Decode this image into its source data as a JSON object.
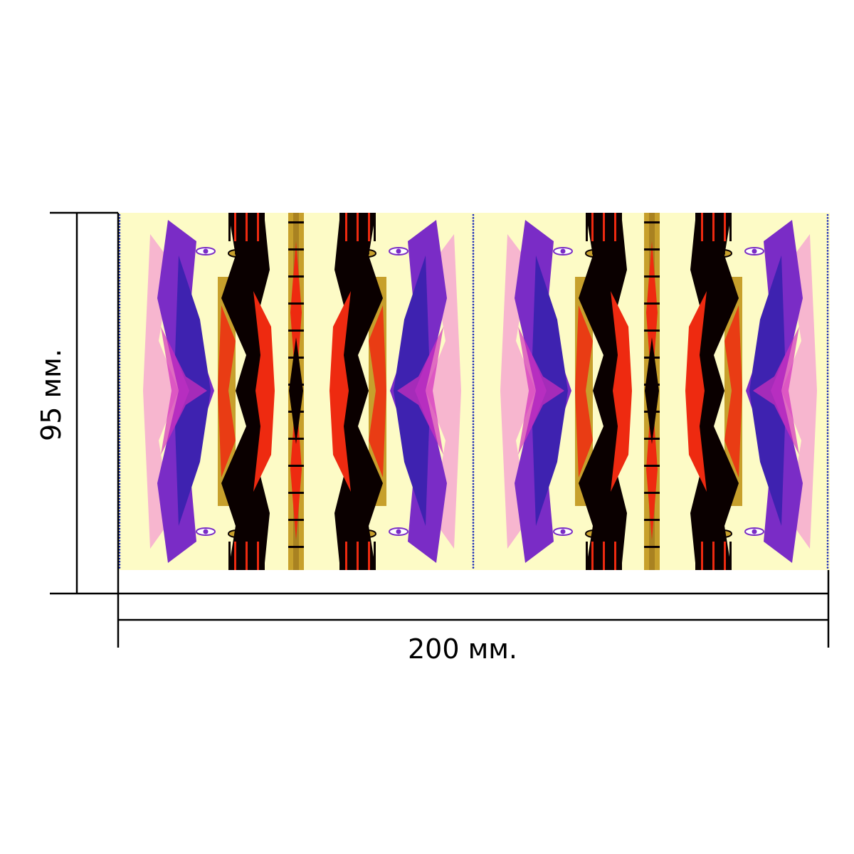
{
  "dimensions": {
    "height_label": "95 мм.",
    "width_label": "200 мм."
  },
  "colors": {
    "background": "#fdfbc6",
    "black": "#0a0000",
    "red": "#ee2a10",
    "ochre": "#c7a02c",
    "ochre_dark": "#a98221",
    "blue": "#3e22b0",
    "purple": "#7a2cc6",
    "magenta": "#d22fbd",
    "pink": "#f37dd7",
    "dot_blue": "#1a2ab8"
  }
}
